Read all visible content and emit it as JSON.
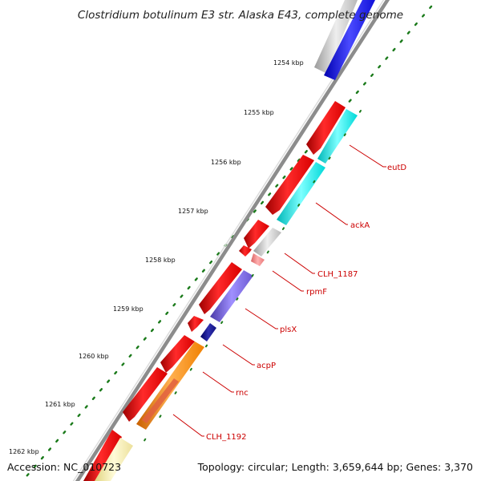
{
  "title": "Clostridium botulinum E3 str. Alaska E43, complete genome",
  "footer": {
    "accession": "Accession: NC_010723",
    "summary": "Topology: circular; Length: 3,659,644 bp; Genes: 3,370"
  },
  "ticks": [
    {
      "label": "1254 kbp"
    },
    {
      "label": "1255 kbp"
    },
    {
      "label": "1256 kbp"
    },
    {
      "label": "1257 kbp"
    },
    {
      "label": "1258 kbp"
    },
    {
      "label": "1259 kbp"
    },
    {
      "label": "1260 kbp"
    },
    {
      "label": "1261 kbp"
    },
    {
      "label": "1262 kbp"
    }
  ],
  "genes": [
    {
      "label": "eutD"
    },
    {
      "label": "ackA"
    },
    {
      "label": "CLH_1187"
    },
    {
      "label": "rpmF"
    },
    {
      "label": "plsX"
    },
    {
      "label": "acpP"
    },
    {
      "label": "rnc"
    },
    {
      "label": "CLH_1192"
    }
  ],
  "colors": {
    "red_cds": "#ee0000",
    "cyan_gene": "#00eeee",
    "blue_gene": "#1a1aee",
    "grey_gene": "#c4c4c4",
    "pink_gene": "#f08888",
    "purple_gene": "#7060cc",
    "navy_gene": "#10108a",
    "orange_gene": "#ff8c00",
    "yellow_gene": "#f5eda0",
    "backbone": "#8c8c8c",
    "tick_green": "#1a7a1a",
    "label_red": "#cc0000"
  }
}
